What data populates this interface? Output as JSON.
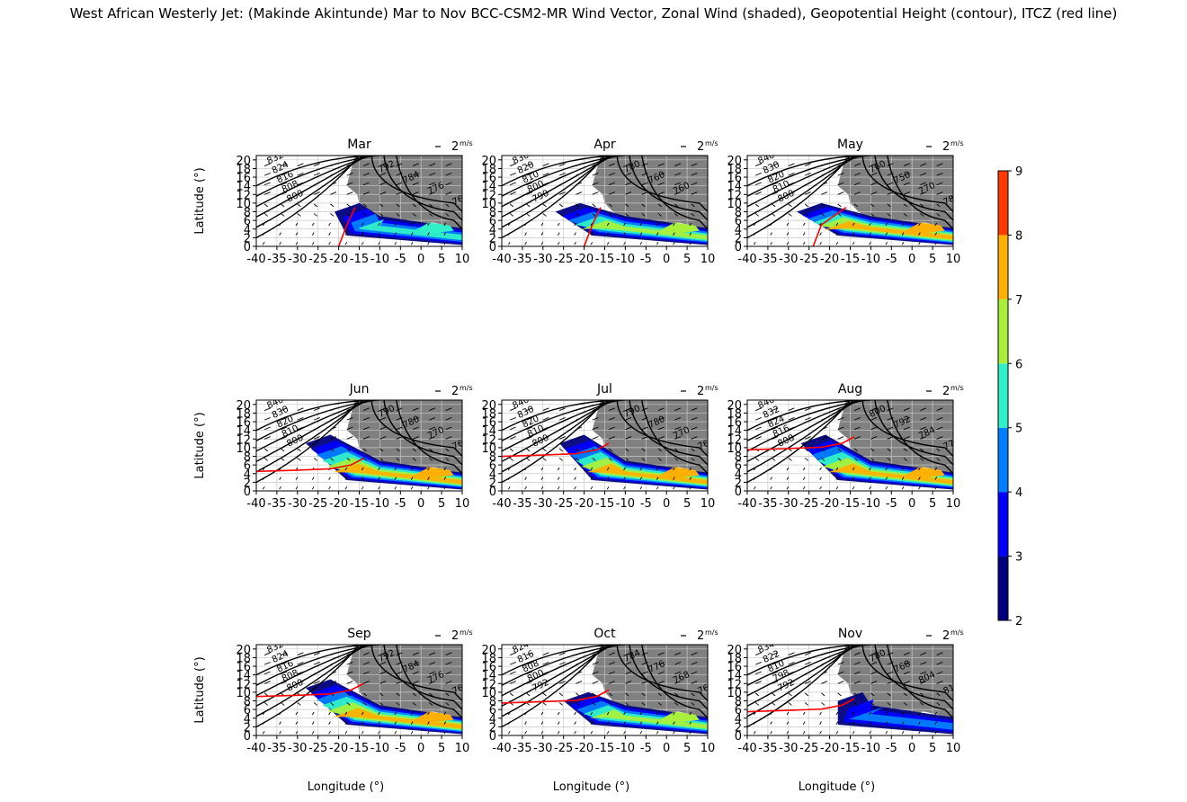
{
  "figure": {
    "title": "West African Westerly Jet: (Makinde Akintunde) Mar to Nov BCC-CSM2-MR Wind Vector, Zonal Wind (shaded), Geopotential Height (contour), ITCZ (red line)"
  },
  "chart_data": {
    "type": "contour-map",
    "panel_titles": [
      "Mar",
      "Apr",
      "May",
      "Jun",
      "Jul",
      "Aug",
      "Sep",
      "Oct",
      "Nov"
    ],
    "ylabel": "Latitude (°)",
    "xlabel": "Longitude (°)",
    "xticks": [
      "-40",
      "-35",
      "-30",
      "-25",
      "-20",
      "-15",
      "-10",
      "-5",
      "0",
      "5",
      "10"
    ],
    "yticks": [
      "0",
      "2",
      "4",
      "6",
      "8",
      "10",
      "12",
      "14",
      "16",
      "18",
      "20"
    ],
    "xlim": [
      -40,
      10
    ],
    "ylim": [
      0,
      21
    ],
    "grid": true,
    "quiver_key_label": "2",
    "quiver_key_unit": "m/s",
    "colorbar": {
      "levels": [
        2,
        3,
        4,
        5,
        6,
        7,
        8,
        9
      ],
      "ticks": [
        "2",
        "3",
        "4",
        "5",
        "6",
        "7",
        "8",
        "9"
      ],
      "colors": [
        "#00007f",
        "#0000ff",
        "#0080ff",
        "#2ff0c8",
        "#a8f03c",
        "#ffb000",
        "#ff3a00"
      ]
    },
    "land_color": "#808080",
    "itcz_color": "#ff0000",
    "contour_labels": [
      [
        "832",
        "824",
        "816",
        "808",
        "800",
        "792",
        "784",
        "776",
        "768",
        "760",
        "800"
      ],
      [
        "830",
        "820",
        "810",
        "800",
        "790",
        "780",
        "760",
        "760"
      ],
      [
        "840",
        "830",
        "820",
        "810",
        "800",
        "760",
        "750",
        "770",
        "780"
      ],
      [
        "840",
        "830",
        "820",
        "810",
        "800",
        "790",
        "780",
        "770",
        "760"
      ],
      [
        "840",
        "830",
        "820",
        "810",
        "800",
        "790",
        "780",
        "770",
        "760"
      ],
      [
        "840",
        "832",
        "824",
        "816",
        "808",
        "800",
        "792",
        "784",
        "776",
        "768",
        "760"
      ],
      [
        "832",
        "824",
        "816",
        "808",
        "800",
        "792",
        "784",
        "776",
        "760"
      ],
      [
        "824",
        "816",
        "808",
        "800",
        "792",
        "784",
        "776",
        "768",
        "760"
      ],
      [
        "834",
        "822",
        "810",
        "798",
        "792",
        "780",
        "768",
        "804",
        "816",
        "828",
        "786"
      ]
    ],
    "itcz_lat_at_west_edge": [
      null,
      null,
      null,
      4.5,
      8.0,
      9.5,
      9.0,
      7.5,
      5.5
    ],
    "jet_max_zonal_wind": [
      6,
      7,
      8,
      8,
      8,
      8,
      8,
      7,
      5
    ]
  }
}
